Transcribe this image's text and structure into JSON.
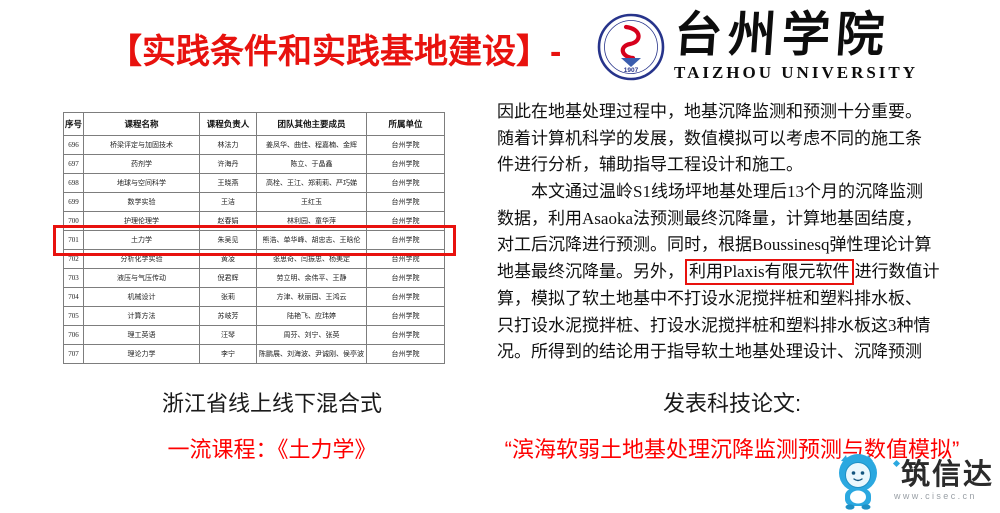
{
  "title": "【实践条件和实践基地建设】-",
  "university": {
    "name_cn": "台州学院",
    "name_en": "TAIZHOU UNIVERSITY",
    "seal_year": "1907"
  },
  "table": {
    "headers": [
      "序号",
      "课程名称",
      "课程负责人",
      "团队其他主要成员",
      "所属单位"
    ],
    "highlighted_id": "701",
    "rows": [
      {
        "id": "696",
        "course": "桥梁评定与加固技术",
        "leader": "林法力",
        "members": "姜凤华、曲佳、程嘉楠、金辉",
        "unit": "台州学院"
      },
      {
        "id": "697",
        "course": "药剂学",
        "leader": "许海丹",
        "members": "陈立、于晶鑫",
        "unit": "台州学院"
      },
      {
        "id": "698",
        "course": "地球与空间科学",
        "leader": "王晓燕",
        "members": "高栓、王江、郑莉莉、严巧娣",
        "unit": "台州学院"
      },
      {
        "id": "699",
        "course": "数学实验",
        "leader": "王洁",
        "members": "王红玉",
        "unit": "台州学院"
      },
      {
        "id": "700",
        "course": "护理伦理学",
        "leader": "赵春娟",
        "members": "林利园、童华萍",
        "unit": "台州学院"
      },
      {
        "id": "701",
        "course": "土力学",
        "leader": "朱吴见",
        "members": "熊浩、单华峰、胡忠志、王晗伦",
        "unit": "台州学院"
      },
      {
        "id": "702",
        "course": "分析化学实验",
        "leader": "黄凌",
        "members": "张思奇、闫振忠、杨美定",
        "unit": "台州学院"
      },
      {
        "id": "703",
        "course": "液压与气压传动",
        "leader": "倪君辉",
        "members": "劳立明、余伟平、王静",
        "unit": "台州学院"
      },
      {
        "id": "704",
        "course": "机械设计",
        "leader": "张莉",
        "members": "方津、秋丽园、王鸿云",
        "unit": "台州学院"
      },
      {
        "id": "705",
        "course": "计算方法",
        "leader": "苏岐芳",
        "members": "陆艳飞、应玮婷",
        "unit": "台州学院"
      },
      {
        "id": "706",
        "course": "理工英语",
        "leader": "汪琴",
        "members": "周芬、刘宁、张英",
        "unit": "台州学院"
      },
      {
        "id": "707",
        "course": "理论力学",
        "leader": "李宁",
        "members": "陈鹏展、刘海波、尹诚刚、侯亭波",
        "unit": "台州学院"
      }
    ]
  },
  "article": {
    "lines": [
      {
        "text": "因此在地基处理过程中，地基沉降监测和预测十分重要。"
      },
      {
        "text": "随着计算机科学的发展，数值模拟可以考虑不同的施工条"
      },
      {
        "text": "件进行分析，辅助指导工程设计和施工。"
      },
      {
        "text": "本文通过温岭S1线场坪地基处理后13个月的沉降监测",
        "indent": true
      },
      {
        "text": "数据，利用Asaoka法预测最终沉降量，计算地基固结度，"
      },
      {
        "text": "对工后沉降进行预测。同时，根据Boussinesq弹性理论计算"
      },
      {
        "prefix": "地基最终沉降量。另外，",
        "boxed": "利用Plaxis有限元软件",
        "suffix": "进行数值计"
      },
      {
        "text": "算，模拟了软土地基中不打设水泥搅拌桩和塑料排水板、"
      },
      {
        "text": "只打设水泥搅拌桩、打设水泥搅拌桩和塑料排水板这3种情"
      },
      {
        "text": "况。所得到的结论用于指导软土地基处理设计、沉降预测"
      }
    ]
  },
  "captions": {
    "left_line1": "浙江省线上线下混合式",
    "left_line2": "一流课程：《土力学》",
    "right_line1": "发表科技论文:",
    "right_line2": "“滨海软弱土地基处理沉降监测预测与数值模拟”"
  },
  "watermark": {
    "brand": "筑信达",
    "url": "www.cisec.cn"
  },
  "colors": {
    "title_red": "#e8120e",
    "caption_red": "#fe0000",
    "highlight_red": "#e8120e",
    "mascot_blue": "#2ba8e0",
    "seal_navy": "#27348b",
    "seal_red": "#d6001c"
  }
}
